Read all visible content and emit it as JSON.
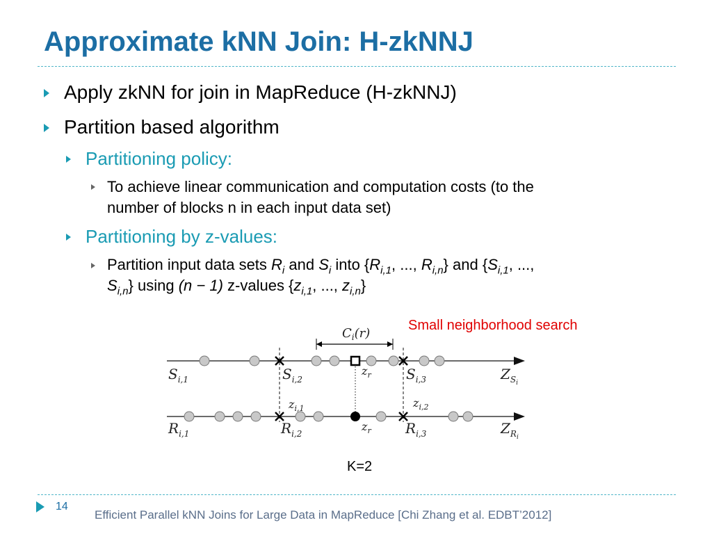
{
  "title": "Approximate kNN Join: H-zkNNJ",
  "bullets": {
    "b1": "Apply zkNN for join in MapReduce (H-zkNNJ)",
    "b2": "Partition based algorithm",
    "b2_sub1": "Partitioning policy:",
    "b2_sub1_detail_line1": "To achieve linear communication and computation costs (to the",
    "b2_sub1_detail_line2": "number of blocks n in each input data set)",
    "b2_sub2": "Partitioning by z-values:",
    "b2_sub2_detail_line1": "Partition input data sets R_i and S_i into {R_i,1, ..., R_i,n} and {S_i,1, ...,",
    "b2_sub2_detail_line2": "S_i,n} using (n − 1) z-values {z_i,1, ..., z_i,n}"
  },
  "diagram": {
    "callout": "Small neighborhood search",
    "k_label": "K=2",
    "labels": {
      "ci_r": "Ci(r)",
      "s_i1": "Si,1",
      "s_i2": "Si,2",
      "s_i3": "Si,3",
      "z_si": "ZSi",
      "r_i1": "Ri,1",
      "r_i2": "Ri,2",
      "r_i3": "Ri,3",
      "z_ri": "ZRi",
      "zr_top": "zr",
      "zr_bottom": "zr",
      "z_i1": "zi,1",
      "z_i2": "zi,2"
    }
  },
  "footer": {
    "page_number": "14",
    "citation": "Efficient Parallel kNN Joins for Large Data in MapReduce  [Chi Zhang et al.  EDBT’2012]"
  },
  "colors": {
    "title": "#1c6ea4",
    "accent": "#1a9bb3",
    "callout": "#e00000"
  }
}
